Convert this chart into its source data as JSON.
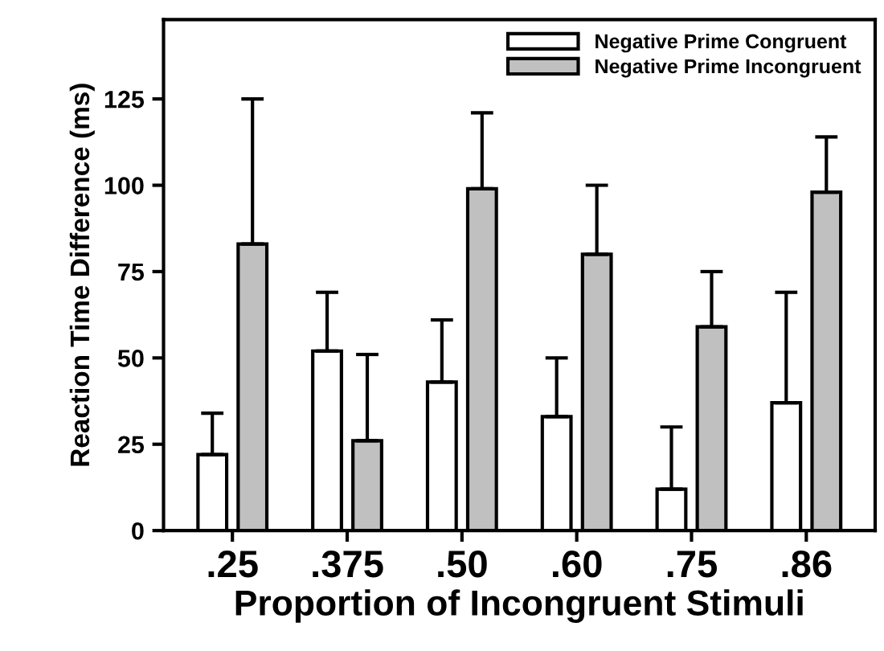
{
  "chart_data": {
    "type": "bar",
    "xlabel": "Proportion of Incongruent Stimuli",
    "ylabel": "Reaction Time Difference (ms)",
    "categories": [
      ".25",
      ".375",
      ".50",
      ".60",
      ".75",
      ".86"
    ],
    "series": [
      {
        "name": "Negative Prime Congruent",
        "color": "#ffffff",
        "values": [
          22,
          52,
          43,
          33,
          12,
          37
        ],
        "errors": [
          [
            22,
            34
          ],
          [
            52,
            69
          ],
          [
            43,
            61
          ],
          [
            33,
            50
          ],
          [
            12,
            30
          ],
          [
            37,
            69
          ]
        ]
      },
      {
        "name": "Negative Prime Incongruent",
        "color": "#c0c0c0",
        "values": [
          83,
          26,
          99,
          80,
          59,
          98
        ],
        "errors": [
          [
            83,
            125
          ],
          [
            26,
            51
          ],
          [
            99,
            121
          ],
          [
            80,
            100
          ],
          [
            59,
            75
          ],
          [
            98,
            114
          ]
        ]
      }
    ],
    "ylim": [
      0,
      148
    ],
    "yticks": [
      0,
      25,
      50,
      75,
      100,
      125
    ],
    "grid": false,
    "legend": "top right"
  }
}
